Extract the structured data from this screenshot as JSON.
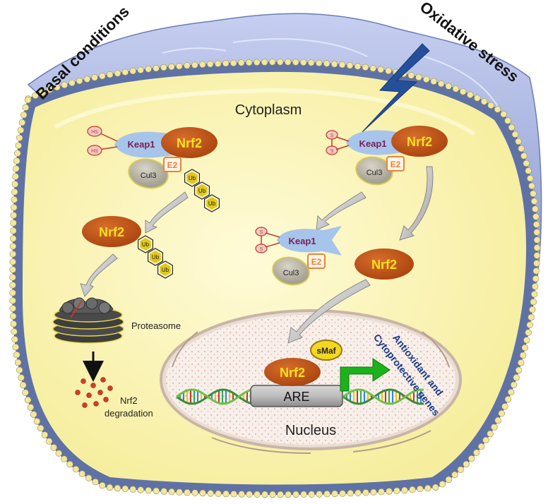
{
  "headings": {
    "left": "Basal conditions",
    "right": "Oxidative stress"
  },
  "compartments": {
    "cytoplasm": "Cytoplasm",
    "nucleus": "Nucleus"
  },
  "proteins": {
    "nrf2": "Nrf2",
    "keap1": "Keap1",
    "cul3": "Cul3",
    "e2": "E2",
    "ub": "Ub",
    "smaf": "sMaf",
    "are": "ARE"
  },
  "groups": {
    "hs": "HS",
    "s": "S"
  },
  "labels": {
    "proteasome": "Proteasome",
    "degradation_line1": "Nrf2",
    "degradation_line2": "degradation",
    "genes_line1": "Antioxidant and",
    "genes_line2": "Cytoprotective genes"
  },
  "colors": {
    "cell_fill": "#fbf7c0",
    "membrane": "#5f72a6",
    "membrane_bead": "#f3e7a0",
    "ecm": "#a9b7e0",
    "nrf2": "#c0561a",
    "nrf2_text": "#f7e21c",
    "keap1": "#a7c4ea",
    "keap1_text": "#7a1f55",
    "cul3": "#b8b4a6",
    "e2": "#e8833c",
    "ub": "#e2c81a",
    "bolt": "#24509b",
    "arrow_green": "#1bb21b",
    "genes_text": "#1a3a87",
    "nucleus_fill": "#f7efea",
    "degradation": "#d83a2a"
  }
}
